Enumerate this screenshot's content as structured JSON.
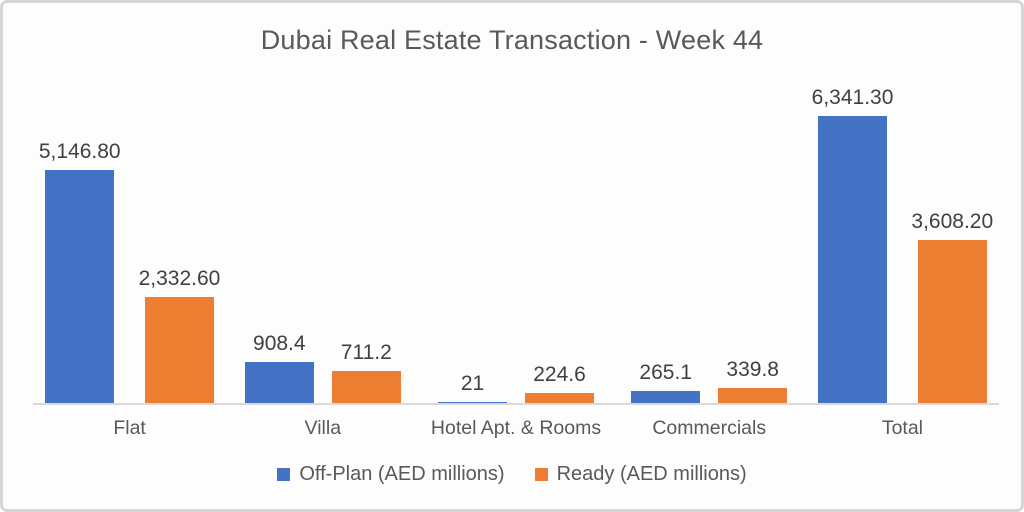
{
  "chart_data": {
    "type": "bar",
    "title": "Dubai Real Estate Transaction - Week 44",
    "categories": [
      "Flat",
      "Villa",
      "Hotel Apt. & Rooms",
      "Commercials",
      "Total"
    ],
    "series": [
      {
        "name": "Off-Plan (AED millions)",
        "color": "#4472C4",
        "values": [
          5146.8,
          908.4,
          21,
          265.1,
          6341.3
        ],
        "value_labels": [
          "5,146.80",
          "908.4",
          "21",
          "265.1",
          "6,341.30"
        ]
      },
      {
        "name": "Ready (AED millions)",
        "color": "#ED7D31",
        "values": [
          2332.6,
          711.2,
          224.6,
          339.8,
          3608.2
        ],
        "value_labels": [
          "2,332.60",
          "711.2",
          "224.6",
          "339.8",
          "3,608.20"
        ]
      }
    ],
    "xlabel": "",
    "ylabel": "",
    "ylim": [
      0,
      6500
    ],
    "grid": false,
    "y_axis_visible": false,
    "data_labels_visible": true,
    "legend_position": "bottom",
    "colors": {
      "axis_line": "#d9d9d9",
      "title_text": "#595959",
      "category_text": "#595959",
      "legend_text": "#595959",
      "data_label_text": "#404040",
      "frame_border": "#d6d6d6",
      "background": "#fdfdfd"
    }
  }
}
